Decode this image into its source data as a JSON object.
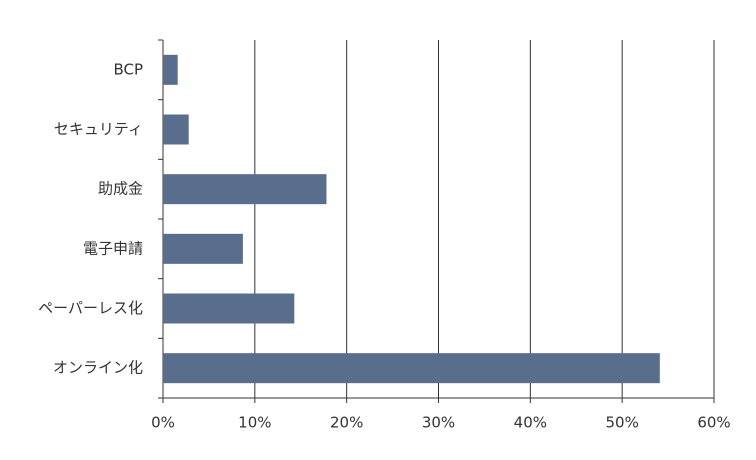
{
  "chart_data": {
    "type": "hbar",
    "categories": [
      "BCP",
      "セキュリティ",
      "助成金",
      "電子申請",
      "ペーパーレス化",
      "オンライン化"
    ],
    "values": [
      1.6,
      2.8,
      17.8,
      8.7,
      14.3,
      54.1
    ],
    "color": "#596e8c",
    "xlim": [
      0,
      60
    ],
    "xticks": [
      {
        "value": 0,
        "label": "0%"
      },
      {
        "value": 10,
        "label": "10%"
      },
      {
        "value": 20,
        "label": "20%"
      },
      {
        "value": 30,
        "label": "30%"
      },
      {
        "value": 40,
        "label": "40%"
      },
      {
        "value": 50,
        "label": "50%"
      },
      {
        "value": 60,
        "label": "60%"
      }
    ],
    "grid": true
  }
}
